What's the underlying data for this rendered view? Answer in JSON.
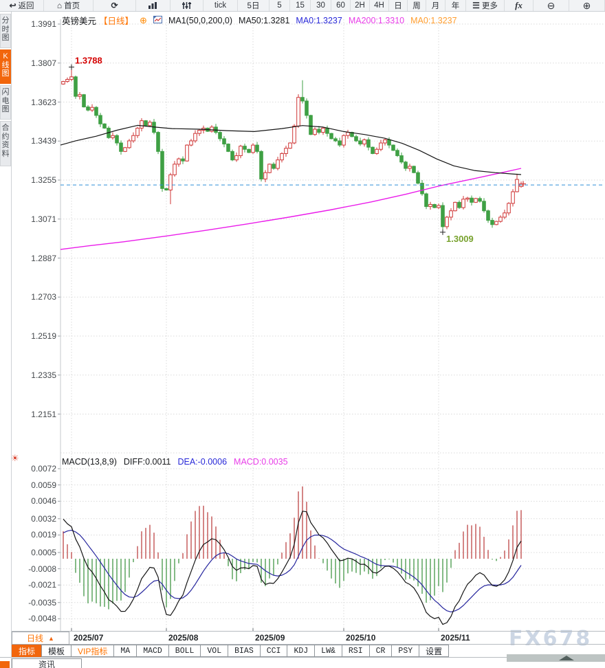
{
  "toolbar": {
    "items": [
      {
        "label": "返回",
        "icon": "back"
      },
      {
        "label": "首页",
        "icon": "home"
      },
      {
        "label": "",
        "icon": "refresh"
      },
      {
        "label": "",
        "icon": "bar-chart"
      },
      {
        "label": "",
        "icon": "sliders"
      },
      {
        "label": "tick",
        "icon": ""
      },
      {
        "label": "5日",
        "icon": ""
      },
      {
        "label": "5",
        "icon": ""
      },
      {
        "label": "15",
        "icon": ""
      },
      {
        "label": "30",
        "icon": ""
      },
      {
        "label": "60",
        "icon": ""
      },
      {
        "label": "2H",
        "icon": ""
      },
      {
        "label": "4H",
        "icon": ""
      },
      {
        "label": "日",
        "icon": ""
      },
      {
        "label": "周",
        "icon": ""
      },
      {
        "label": "月",
        "icon": ""
      },
      {
        "label": "年",
        "icon": ""
      },
      {
        "label": "更多",
        "icon": "menu"
      },
      {
        "label": "fx",
        "icon": "fx"
      },
      {
        "label": "",
        "icon": "zoom-out"
      },
      {
        "label": "",
        "icon": "zoom-in"
      }
    ]
  },
  "sidebar": {
    "tabs": [
      {
        "label": "分时图",
        "active": false
      },
      {
        "label": "K线图",
        "active": true
      },
      {
        "label": "闪电图",
        "active": false
      },
      {
        "label": "合约资料",
        "active": false
      }
    ]
  },
  "chart_header": {
    "symbol": "英镑美元",
    "period_tag": "【日线】",
    "ma_settings": "MA1(50,0,200,0)",
    "ma50": "MA50:1.3281",
    "ma0_fast": "MA0:1.3237",
    "ma200": "MA200:1.3310",
    "ma0_slow": "MA0:1.3237"
  },
  "main_chart": {
    "y_labels": [
      "1.3991",
      "1.3807",
      "1.3623",
      "1.3439",
      "1.3255",
      "1.3071",
      "1.2887",
      "1.2703",
      "1.2519",
      "1.2335",
      "1.2151"
    ],
    "current_price": 1.3232
  },
  "macd_pane": {
    "formula": "MACD(13,8,9)",
    "diff_label": "DIFF:0.0011",
    "dea_label": "DEA:-0.0006",
    "macd_label": "MACD:0.0035",
    "y_labels": [
      "0.0072",
      "0.0059",
      "0.0046",
      "0.0032",
      "0.0019",
      "0.0005",
      "-0.0008",
      "-0.0021",
      "-0.0035",
      "-0.0048"
    ]
  },
  "x_axis": {
    "period_button": "日线",
    "months": [
      {
        "label": "2025/07",
        "index": 2
      },
      {
        "label": "2025/08",
        "index": 25
      },
      {
        "label": "2025/09",
        "index": 46
      },
      {
        "label": "2025/10",
        "index": 68
      },
      {
        "label": "2025/11",
        "index": 91
      }
    ]
  },
  "bottom_tabs": [
    {
      "label": "指标",
      "state": "active"
    },
    {
      "label": "模板",
      "state": ""
    },
    {
      "label": "VIP指标",
      "state": "vip"
    },
    {
      "label": "MA",
      "state": "latin"
    },
    {
      "label": "MACD",
      "state": "latin"
    },
    {
      "label": "BOLL",
      "state": "latin"
    },
    {
      "label": "VOL",
      "state": "latin"
    },
    {
      "label": "BIAS",
      "state": "latin"
    },
    {
      "label": "CCI",
      "state": "latin"
    },
    {
      "label": "KDJ",
      "state": "latin"
    },
    {
      "label": "LW&",
      "state": "latin"
    },
    {
      "label": "RSI",
      "state": "latin"
    },
    {
      "label": "CR",
      "state": "latin"
    },
    {
      "label": "PSY",
      "state": "latin"
    },
    {
      "label": "设置",
      "state": ""
    }
  ],
  "partial_tab": "资讯",
  "watermark": "FX678",
  "theme": {
    "accent": "#f2660c",
    "up": "#cf3434",
    "down": "#3fa044",
    "ma50": "#141414",
    "ma200": "#ea1bea",
    "price_line": "#2f8fd6",
    "hist_pos": "#c25151",
    "hist_neg": "#4f9e52",
    "diff_line": "#141414",
    "dea_line": "#26269e",
    "grid": "#dadada",
    "high_label": "#d40000",
    "low_label": "#78a22e"
  },
  "chart_data": {
    "type": "candlestick",
    "title": "英镑美元 日线 (GBP/USD daily)",
    "price_axis": {
      "top": 1.3991,
      "step": 0.0184,
      "labels_count": 11
    },
    "macd_axis": {
      "top": 0.0072,
      "step": 0.0013
    },
    "open0": 1.3708,
    "closes": [
      1.372,
      1.373,
      1.3742,
      1.365,
      1.3658,
      1.36,
      1.3585,
      1.3598,
      1.356,
      1.352,
      1.35,
      1.3455,
      1.3465,
      1.343,
      1.339,
      1.3408,
      1.344,
      1.3465,
      1.35,
      1.3535,
      1.3512,
      1.3528,
      1.348,
      1.339,
      1.3215,
      1.3208,
      1.328,
      1.333,
      1.3355,
      1.3345,
      1.342,
      1.344,
      1.3475,
      1.349,
      1.35,
      1.3485,
      1.3505,
      1.348,
      1.345,
      1.3425,
      1.339,
      1.335,
      1.337,
      1.3415,
      1.34,
      1.3385,
      1.342,
      1.339,
      1.326,
      1.329,
      1.333,
      1.331,
      1.335,
      1.338,
      1.3405,
      1.343,
      1.351,
      1.3645,
      1.3628,
      1.356,
      1.347,
      1.3495,
      1.348,
      1.35,
      1.3475,
      1.345,
      1.344,
      1.342,
      1.3465,
      1.348,
      1.346,
      1.344,
      1.3425,
      1.3445,
      1.341,
      1.338,
      1.34,
      1.343,
      1.3445,
      1.342,
      1.3395,
      1.337,
      1.334,
      1.331,
      1.332,
      1.329,
      1.324,
      1.319,
      1.313,
      1.314,
      1.3125,
      1.3135,
      1.3035,
      1.308,
      1.311,
      1.315,
      1.3125,
      1.3165,
      1.317,
      1.315,
      1.3168,
      1.3155,
      1.311,
      1.3065,
      1.3045,
      1.306,
      1.308,
      1.31,
      1.3145,
      1.32,
      1.3258,
      1.3237
    ],
    "opens_override": {
      "111": 1.3225
    },
    "wick_overrides": [
      {
        "i": 2,
        "high": 1.3788
      },
      {
        "i": 26,
        "low": 1.3141
      },
      {
        "i": 58,
        "high": 1.3726
      },
      {
        "i": 92,
        "low": 1.3009
      },
      {
        "i": 110,
        "high": 1.3285
      },
      {
        "i": 111,
        "high": 1.3248
      }
    ],
    "annotations": [
      {
        "i": 2,
        "price": 1.3788,
        "text": "1.3788",
        "pos": "high"
      },
      {
        "i": 92,
        "price": 1.3009,
        "text": "1.3009",
        "pos": "low"
      }
    ],
    "ma50_points": [
      [
        88,
        1.342
      ],
      [
        110,
        1.344
      ],
      [
        140,
        1.3462
      ],
      [
        170,
        1.349
      ],
      [
        200,
        1.3513
      ],
      [
        225,
        1.3505
      ],
      [
        250,
        1.3498
      ],
      [
        290,
        1.3495
      ],
      [
        330,
        1.3488
      ],
      [
        370,
        1.3484
      ],
      [
        410,
        1.3498
      ],
      [
        440,
        1.3512
      ],
      [
        470,
        1.3505
      ],
      [
        500,
        1.3484
      ],
      [
        530,
        1.347
      ],
      [
        560,
        1.3452
      ],
      [
        585,
        1.3428
      ],
      [
        610,
        1.3395
      ],
      [
        635,
        1.3355
      ],
      [
        660,
        1.3322
      ],
      [
        690,
        1.33
      ],
      [
        720,
        1.329
      ],
      [
        745,
        1.3284
      ],
      [
        758,
        1.3281
      ]
    ],
    "ma200_points": [
      [
        88,
        1.2928
      ],
      [
        130,
        1.2945
      ],
      [
        180,
        1.2964
      ],
      [
        240,
        1.299
      ],
      [
        300,
        1.3018
      ],
      [
        360,
        1.3048
      ],
      [
        420,
        1.308
      ],
      [
        480,
        1.3114
      ],
      [
        540,
        1.3152
      ],
      [
        590,
        1.3188
      ],
      [
        640,
        1.3228
      ],
      [
        690,
        1.3262
      ],
      [
        730,
        1.329
      ],
      [
        758,
        1.331
      ]
    ],
    "macd_seed": {
      "diff0": 0.0037,
      "dea0": 0.0018
    },
    "macd_values": {
      "diff": 0.0011,
      "dea": -0.0006,
      "macd": 0.0035
    }
  }
}
